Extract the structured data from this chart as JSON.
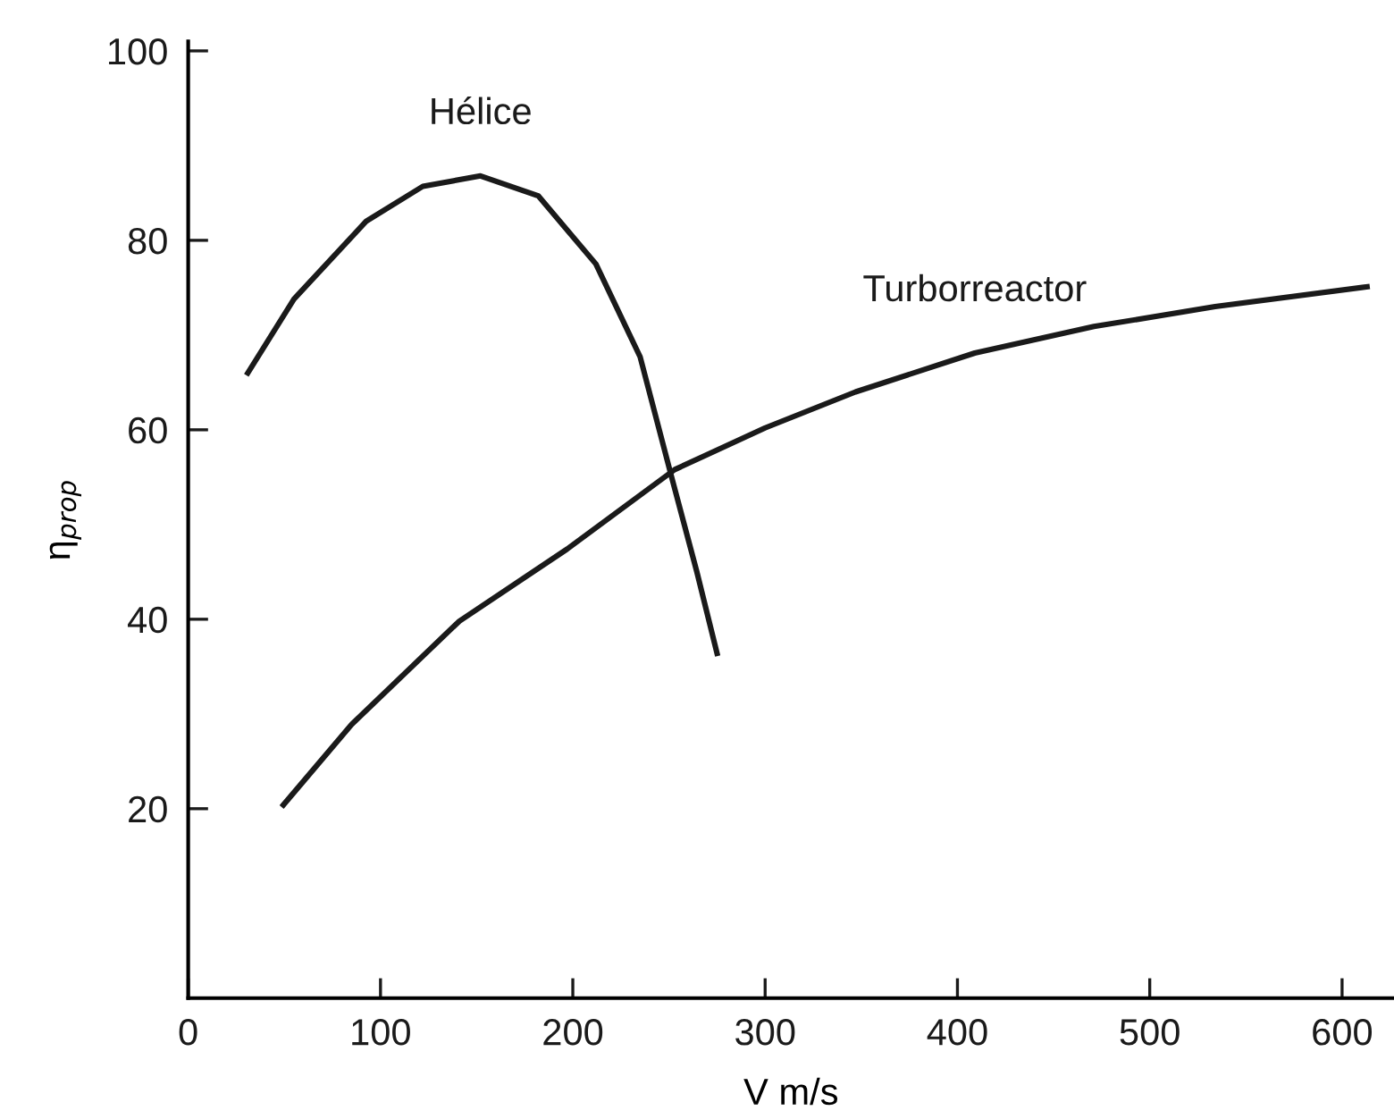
{
  "chart_data": {
    "type": "line",
    "xlabel": "V m/s",
    "ylabel": "η$_{prop}$",
    "series": [
      {
        "name": "Hélice",
        "color": "#1a1a1a",
        "x": [
          31,
          55,
          92.5,
          122,
          152,
          182,
          212,
          235,
          251,
          264.5,
          275
        ],
        "values": [
          66,
          73.8,
          82,
          85.7,
          86.8,
          84.7,
          77.5,
          67.7,
          55.3,
          45,
          36.4
        ]
      },
      {
        "name": "Turborreactor",
        "color": "#1a1a1a",
        "x": [
          49.5,
          85,
          141,
          197,
          253,
          300,
          347,
          409,
          471,
          534,
          613
        ],
        "values": [
          20.4,
          28.9,
          39.8,
          47.4,
          55.8,
          60.2,
          64,
          68.1,
          70.9,
          73,
          75.1
        ]
      }
    ],
    "xlim": [
      0,
      627
    ],
    "ylim": [
      0,
      101
    ],
    "xticks": [
      0,
      100,
      200,
      300,
      400,
      500,
      600
    ],
    "yticks": [
      20,
      40,
      60,
      80,
      100
    ],
    "grid": false,
    "legend": false,
    "marker": "none",
    "line_style": "solid"
  }
}
